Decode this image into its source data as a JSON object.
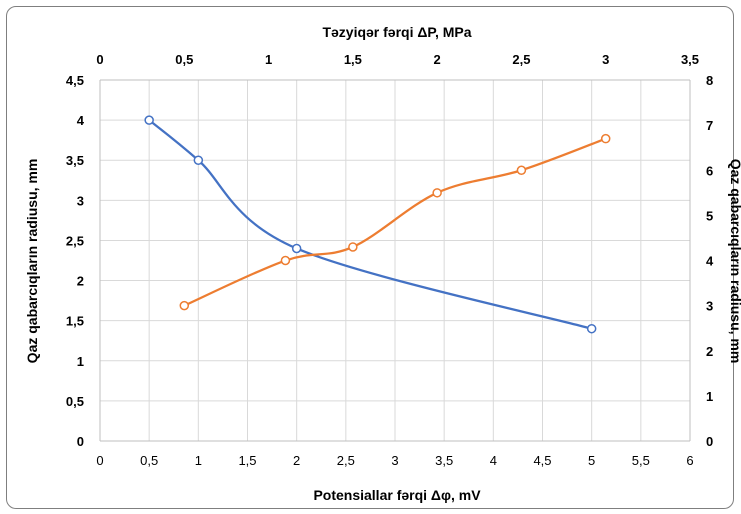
{
  "chart_data": {
    "type": "line",
    "title": "",
    "x_bottom": {
      "label": "Potensiallar fərqi Δφ, mV",
      "range": [
        0,
        6
      ],
      "ticks": [
        "0",
        "0,5",
        "1",
        "1,5",
        "2",
        "2,5",
        "3",
        "3,5",
        "4",
        "4,5",
        "5",
        "5,5",
        "6"
      ]
    },
    "x_top": {
      "label": "Təzyiqər fərqi ΔP, MPa",
      "range": [
        0,
        3.5
      ],
      "ticks": [
        "0",
        "0,5",
        "1",
        "1,5",
        "2",
        "2,5",
        "3",
        "3,5"
      ]
    },
    "y_left": {
      "label": "Qaz qabarcıqların radiusu, mm",
      "range": [
        0,
        4.5
      ],
      "ticks": [
        "0",
        "0,5",
        "1",
        "1,5",
        "2",
        "2,5",
        "3",
        "3,5",
        "4",
        "4,5"
      ]
    },
    "y_right": {
      "label": "Qaz qabarcıqların radiusu, mm",
      "range": [
        0,
        8
      ],
      "ticks": [
        "0",
        "1",
        "2",
        "3",
        "4",
        "5",
        "6",
        "7",
        "8"
      ]
    },
    "grid": true,
    "legend": "none",
    "series": [
      {
        "axes": "bottom-left",
        "color": "#4472c4",
        "x": [
          0.5,
          1,
          2,
          5
        ],
        "y": [
          4,
          3.5,
          2.4,
          1.4
        ]
      },
      {
        "axes": "top-right",
        "color": "#ed7d31",
        "x": [
          0.5,
          1.1,
          1.5,
          2,
          2.5,
          3
        ],
        "y": [
          3,
          4,
          4.3,
          5.5,
          6,
          6.7
        ]
      }
    ]
  }
}
